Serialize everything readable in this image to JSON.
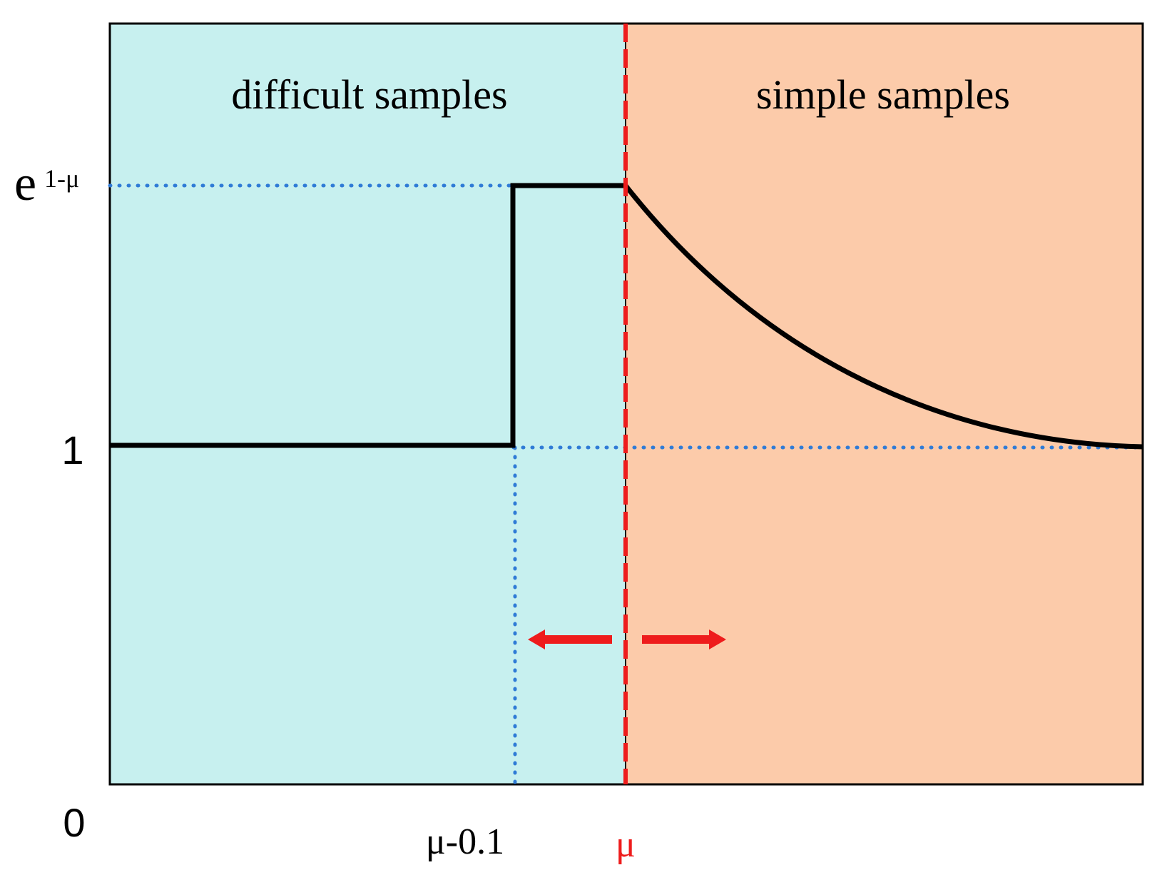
{
  "regions": {
    "left": "difficult samples",
    "right": "simple samples"
  },
  "y_labels": {
    "top_base": "e",
    "top_exponent": "1-μ",
    "one": "1",
    "zero": "0"
  },
  "x_labels": {
    "step": "μ-0.1",
    "mu": "μ"
  }
}
